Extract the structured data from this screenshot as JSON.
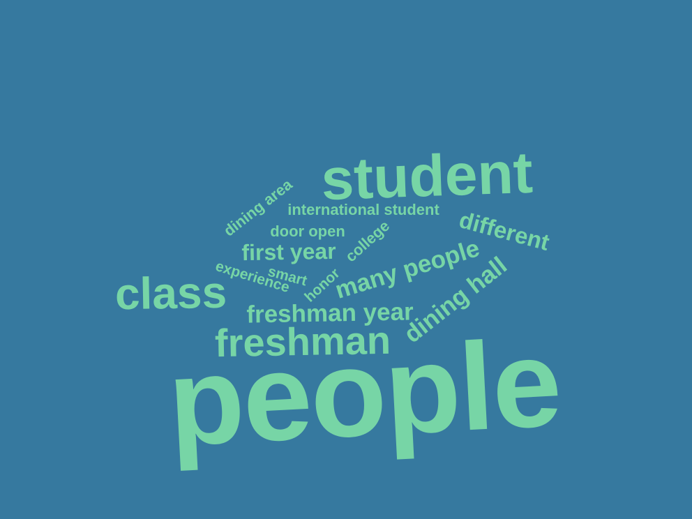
{
  "colors": {
    "background": "#36799f",
    "word": "#77d5a6"
  },
  "words": {
    "people": "people",
    "student": "student",
    "class": "class",
    "freshman": "freshman",
    "freshman_year": "freshman year",
    "many_people": "many people",
    "dining_hall": "dining hall",
    "different": "different",
    "first_year": "first year",
    "international_student": "international student",
    "door_open": "door open",
    "dining_area": "dining area",
    "college": "college",
    "experience": "experience",
    "smart": "smart",
    "honor": "honor"
  }
}
